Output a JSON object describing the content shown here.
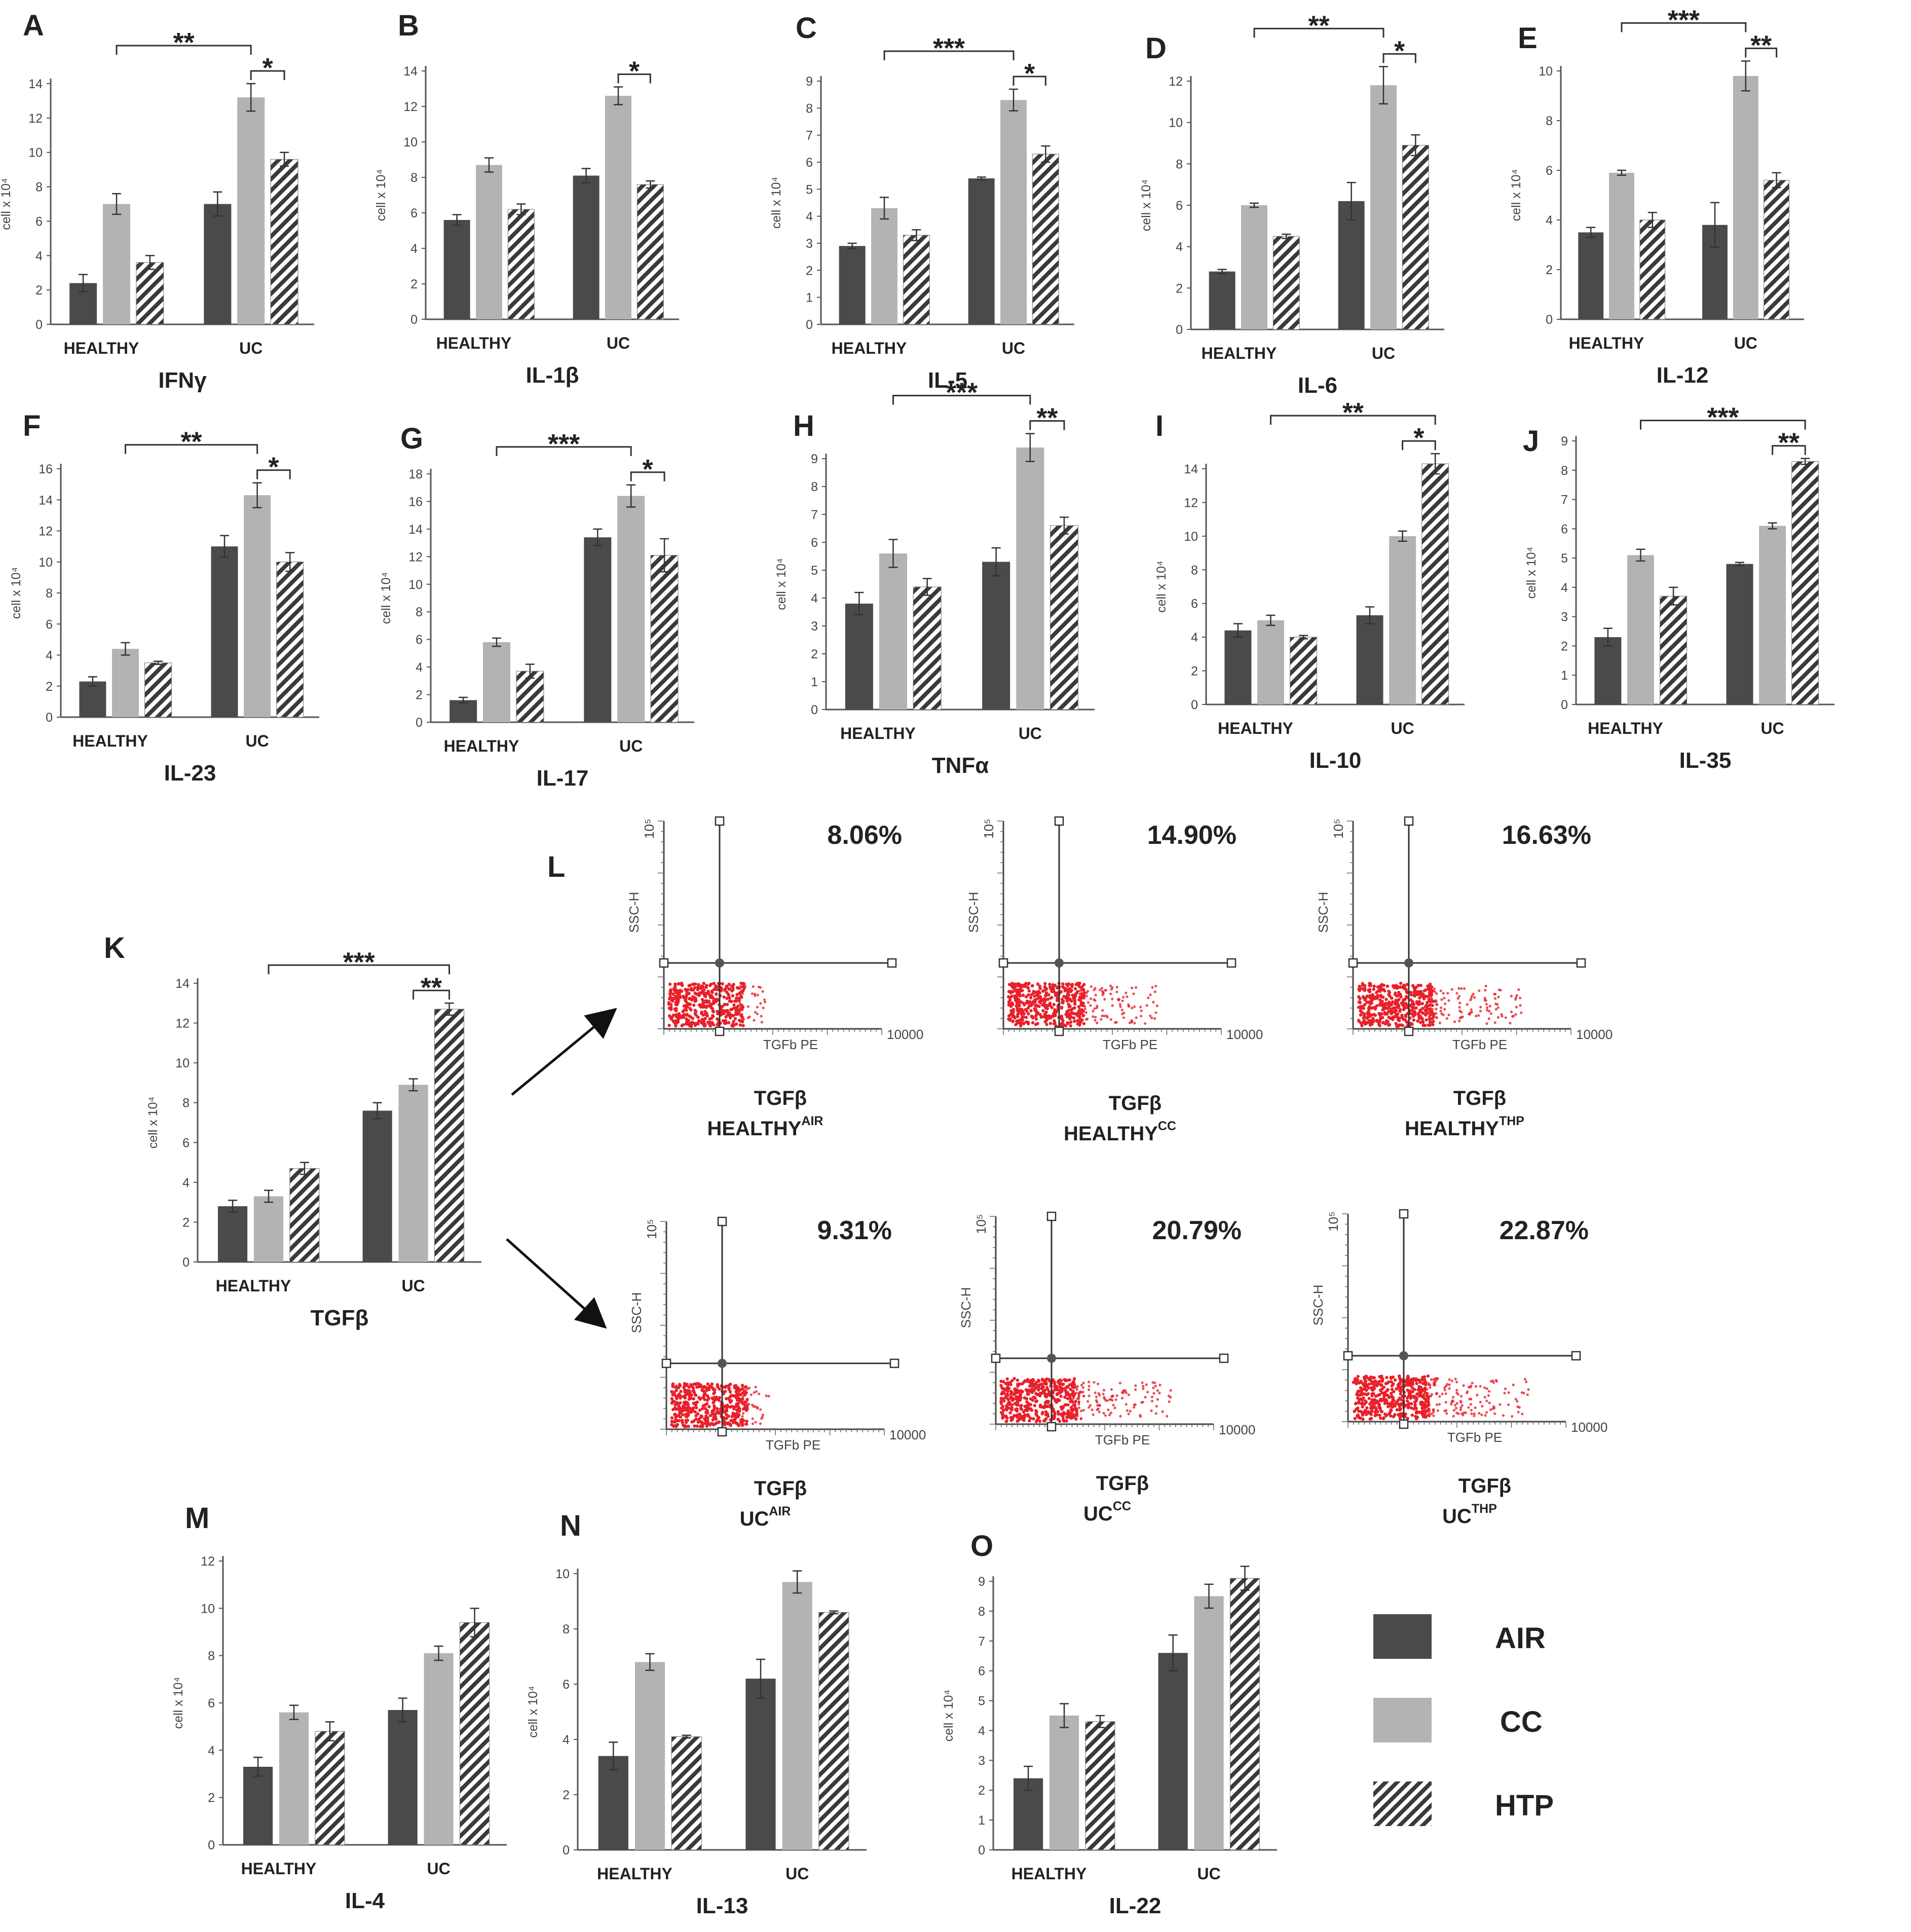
{
  "colors": {
    "air": "#4a4a4a",
    "cc": "#b3b3b3",
    "htp_stripe": "#3a3a3a",
    "htp_bg": "#ffffff",
    "dots": "#e8202a"
  },
  "legend": {
    "items": [
      {
        "key": "air",
        "label": "AIR"
      },
      {
        "key": "cc",
        "label": "CC"
      },
      {
        "key": "htp",
        "label": "HTP"
      }
    ]
  },
  "chart_data": [
    {
      "id": "A",
      "type": "bar",
      "title": "IFNγ",
      "ylabel": "cell x 10⁴",
      "ylim": [
        0,
        14
      ],
      "yticks": [
        0,
        2,
        4,
        6,
        8,
        10,
        12,
        14
      ],
      "categories": [
        "HEALTHY",
        "UC"
      ],
      "series": [
        {
          "name": "AIR",
          "values": [
            2.4,
            7.0
          ],
          "err": [
            0.5,
            0.7
          ]
        },
        {
          "name": "CC",
          "values": [
            7.0,
            13.2
          ],
          "err": [
            0.6,
            0.8
          ]
        },
        {
          "name": "HTP",
          "values": [
            3.6,
            9.6
          ],
          "err": [
            0.4,
            0.4
          ]
        }
      ],
      "sig": [
        {
          "from": [
            0,
            1
          ],
          "to": [
            1,
            1
          ],
          "label": "**",
          "level": 0
        },
        {
          "from": [
            1,
            1
          ],
          "to": [
            1,
            2
          ],
          "label": "*",
          "level": 1
        }
      ]
    },
    {
      "id": "B",
      "type": "bar",
      "title": "IL-1β",
      "ylabel": "cell x 10⁴",
      "ylim": [
        0,
        14
      ],
      "yticks": [
        0,
        2,
        4,
        6,
        8,
        10,
        12,
        14
      ],
      "categories": [
        "HEALTHY",
        "UC"
      ],
      "series": [
        {
          "name": "AIR",
          "values": [
            5.6,
            8.1
          ],
          "err": [
            0.3,
            0.4
          ]
        },
        {
          "name": "CC",
          "values": [
            8.7,
            12.6
          ],
          "err": [
            0.4,
            0.5
          ]
        },
        {
          "name": "HTP",
          "values": [
            6.2,
            7.6
          ],
          "err": [
            0.3,
            0.2
          ]
        }
      ],
      "sig": [
        {
          "from": [
            1,
            1
          ],
          "to": [
            1,
            2
          ],
          "label": "*",
          "level": 1
        }
      ]
    },
    {
      "id": "C",
      "type": "bar",
      "title": "IL-5",
      "ylabel": "cell x 10⁴",
      "ylim": [
        0,
        9
      ],
      "yticks": [
        0,
        1,
        2,
        3,
        4,
        5,
        6,
        7,
        8,
        9
      ],
      "categories": [
        "HEALTHY",
        "UC"
      ],
      "series": [
        {
          "name": "AIR",
          "values": [
            2.9,
            5.4
          ],
          "err": [
            0.1,
            0.05
          ]
        },
        {
          "name": "CC",
          "values": [
            4.3,
            8.3
          ],
          "err": [
            0.4,
            0.4
          ]
        },
        {
          "name": "HTP",
          "values": [
            3.3,
            6.3
          ],
          "err": [
            0.2,
            0.3
          ]
        }
      ],
      "sig": [
        {
          "from": [
            0,
            1
          ],
          "to": [
            1,
            1
          ],
          "label": "***",
          "level": 0
        },
        {
          "from": [
            1,
            1
          ],
          "to": [
            1,
            2
          ],
          "label": "*",
          "level": 1
        }
      ]
    },
    {
      "id": "D",
      "type": "bar",
      "title": "IL-6",
      "ylabel": "cell x 10⁴",
      "ylim": [
        0,
        12
      ],
      "yticks": [
        0,
        2,
        4,
        6,
        8,
        10,
        12
      ],
      "categories": [
        "HEALTHY",
        "UC"
      ],
      "series": [
        {
          "name": "AIR",
          "values": [
            2.8,
            6.2
          ],
          "err": [
            0.1,
            0.9
          ]
        },
        {
          "name": "CC",
          "values": [
            6.0,
            11.8
          ],
          "err": [
            0.1,
            0.9
          ]
        },
        {
          "name": "HTP",
          "values": [
            4.5,
            8.9
          ],
          "err": [
            0.1,
            0.5
          ]
        }
      ],
      "sig": [
        {
          "from": [
            0,
            1
          ],
          "to": [
            1,
            1
          ],
          "label": "**",
          "level": 0
        },
        {
          "from": [
            1,
            1
          ],
          "to": [
            1,
            2
          ],
          "label": "*",
          "level": 1
        }
      ]
    },
    {
      "id": "E",
      "type": "bar",
      "title": "IL-12",
      "ylabel": "cell x 10⁴",
      "ylim": [
        0,
        10
      ],
      "yticks": [
        0,
        2,
        4,
        6,
        8,
        10
      ],
      "categories": [
        "HEALTHY",
        "UC"
      ],
      "series": [
        {
          "name": "AIR",
          "values": [
            3.5,
            3.8
          ],
          "err": [
            0.2,
            0.9
          ]
        },
        {
          "name": "CC",
          "values": [
            5.9,
            9.8
          ],
          "err": [
            0.1,
            0.6
          ]
        },
        {
          "name": "HTP",
          "values": [
            4.0,
            5.6
          ],
          "err": [
            0.3,
            0.3
          ]
        }
      ],
      "sig": [
        {
          "from": [
            0,
            1
          ],
          "to": [
            1,
            1
          ],
          "label": "***",
          "level": 0
        },
        {
          "from": [
            1,
            1
          ],
          "to": [
            1,
            2
          ],
          "label": "**",
          "level": 1
        }
      ]
    },
    {
      "id": "F",
      "type": "bar",
      "title": "IL-23",
      "ylabel": "cell x 10⁴",
      "ylim": [
        0,
        16
      ],
      "yticks": [
        0,
        2,
        4,
        6,
        8,
        10,
        12,
        14,
        16
      ],
      "categories": [
        "HEALTHY",
        "UC"
      ],
      "series": [
        {
          "name": "AIR",
          "values": [
            2.3,
            11.0
          ],
          "err": [
            0.3,
            0.7
          ]
        },
        {
          "name": "CC",
          "values": [
            4.4,
            14.3
          ],
          "err": [
            0.4,
            0.8
          ]
        },
        {
          "name": "HTP",
          "values": [
            3.5,
            10.0
          ],
          "err": [
            0.1,
            0.6
          ]
        }
      ],
      "sig": [
        {
          "from": [
            0,
            1
          ],
          "to": [
            1,
            1
          ],
          "label": "**",
          "level": 0
        },
        {
          "from": [
            1,
            1
          ],
          "to": [
            1,
            2
          ],
          "label": "*",
          "level": 1
        }
      ]
    },
    {
      "id": "G",
      "type": "bar",
      "title": "IL-17",
      "ylabel": "cell x 10⁴",
      "ylim": [
        0,
        18
      ],
      "yticks": [
        0,
        2,
        4,
        6,
        8,
        10,
        12,
        14,
        16,
        18
      ],
      "categories": [
        "HEALTHY",
        "UC"
      ],
      "series": [
        {
          "name": "AIR",
          "values": [
            1.6,
            13.4
          ],
          "err": [
            0.2,
            0.6
          ]
        },
        {
          "name": "CC",
          "values": [
            5.8,
            16.4
          ],
          "err": [
            0.3,
            0.8
          ]
        },
        {
          "name": "HTP",
          "values": [
            3.7,
            12.1
          ],
          "err": [
            0.5,
            1.2
          ]
        }
      ],
      "sig": [
        {
          "from": [
            0,
            1
          ],
          "to": [
            1,
            1
          ],
          "label": "***",
          "level": 0
        },
        {
          "from": [
            1,
            1
          ],
          "to": [
            1,
            2
          ],
          "label": "*",
          "level": 1
        }
      ]
    },
    {
      "id": "H",
      "type": "bar",
      "title": "TNFα",
      "ylabel": "cell x 10⁴",
      "ylim": [
        0,
        9
      ],
      "yticks": [
        0,
        1,
        2,
        3,
        4,
        5,
        6,
        7,
        8,
        9
      ],
      "categories": [
        "HEALTHY",
        "UC"
      ],
      "series": [
        {
          "name": "AIR",
          "values": [
            3.8,
            5.3
          ],
          "err": [
            0.4,
            0.5
          ]
        },
        {
          "name": "CC",
          "values": [
            5.6,
            9.4
          ],
          "err": [
            0.5,
            0.5
          ]
        },
        {
          "name": "HTP",
          "values": [
            4.4,
            6.6
          ],
          "err": [
            0.3,
            0.3
          ]
        }
      ],
      "sig": [
        {
          "from": [
            0,
            1
          ],
          "to": [
            1,
            1
          ],
          "label": "***",
          "level": 0
        },
        {
          "from": [
            1,
            1
          ],
          "to": [
            1,
            2
          ],
          "label": "**",
          "level": 1
        }
      ]
    },
    {
      "id": "I",
      "type": "bar",
      "title": "IL-10",
      "ylabel": "cell x 10⁴",
      "ylim": [
        0,
        14
      ],
      "yticks": [
        0,
        2,
        4,
        6,
        8,
        10,
        12,
        14
      ],
      "categories": [
        "HEALTHY",
        "UC"
      ],
      "series": [
        {
          "name": "AIR",
          "values": [
            4.4,
            5.3
          ],
          "err": [
            0.4,
            0.5
          ]
        },
        {
          "name": "CC",
          "values": [
            5.0,
            10.0
          ],
          "err": [
            0.3,
            0.3
          ]
        },
        {
          "name": "HTP",
          "values": [
            4.0,
            14.3
          ],
          "err": [
            0.1,
            0.6
          ]
        }
      ],
      "sig": [
        {
          "from": [
            0,
            1
          ],
          "to": [
            1,
            2
          ],
          "label": "**",
          "level": 0
        },
        {
          "from": [
            1,
            1
          ],
          "to": [
            1,
            2
          ],
          "label": "*",
          "level": 1
        }
      ]
    },
    {
      "id": "J",
      "type": "bar",
      "title": "IL-35",
      "ylabel": "cell x 10⁴",
      "ylim": [
        0,
        9
      ],
      "yticks": [
        0,
        1,
        2,
        3,
        4,
        5,
        6,
        7,
        8,
        9
      ],
      "categories": [
        "HEALTHY",
        "UC"
      ],
      "series": [
        {
          "name": "AIR",
          "values": [
            2.3,
            4.8
          ],
          "err": [
            0.3,
            0.05
          ]
        },
        {
          "name": "CC",
          "values": [
            5.1,
            6.1
          ],
          "err": [
            0.2,
            0.1
          ]
        },
        {
          "name": "HTP",
          "values": [
            3.7,
            8.3
          ],
          "err": [
            0.3,
            0.1
          ]
        }
      ],
      "sig": [
        {
          "from": [
            0,
            1
          ],
          "to": [
            1,
            2
          ],
          "label": "***",
          "level": 0
        },
        {
          "from": [
            1,
            1
          ],
          "to": [
            1,
            2
          ],
          "label": "**",
          "level": 1
        }
      ]
    },
    {
      "id": "K",
      "type": "bar",
      "title": "TGFβ",
      "ylabel": "cell x 10⁴",
      "ylim": [
        0,
        14
      ],
      "yticks": [
        0,
        2,
        4,
        6,
        8,
        10,
        12,
        14
      ],
      "categories": [
        "HEALTHY",
        "UC"
      ],
      "series": [
        {
          "name": "AIR",
          "values": [
            2.8,
            7.6
          ],
          "err": [
            0.3,
            0.4
          ]
        },
        {
          "name": "CC",
          "values": [
            3.3,
            8.9
          ],
          "err": [
            0.3,
            0.3
          ]
        },
        {
          "name": "HTP",
          "values": [
            4.7,
            12.7
          ],
          "err": [
            0.3,
            0.3
          ]
        }
      ],
      "sig": [
        {
          "from": [
            0,
            1
          ],
          "to": [
            1,
            2
          ],
          "label": "***",
          "level": 0
        },
        {
          "from": [
            1,
            1
          ],
          "to": [
            1,
            2
          ],
          "label": "**",
          "level": 1
        }
      ]
    },
    {
      "id": "M",
      "type": "bar",
      "title": "IL-4",
      "ylabel": "cell x 10⁴",
      "ylim": [
        0,
        12
      ],
      "yticks": [
        0,
        2,
        4,
        6,
        8,
        10,
        12
      ],
      "categories": [
        "HEALTHY",
        "UC"
      ],
      "series": [
        {
          "name": "AIR",
          "values": [
            3.3,
            5.7
          ],
          "err": [
            0.4,
            0.5
          ]
        },
        {
          "name": "CC",
          "values": [
            5.6,
            8.1
          ],
          "err": [
            0.3,
            0.3
          ]
        },
        {
          "name": "HTP",
          "values": [
            4.8,
            9.4
          ],
          "err": [
            0.4,
            0.6
          ]
        }
      ],
      "sig": []
    },
    {
      "id": "N",
      "type": "bar",
      "title": "IL-13",
      "ylabel": "cell x 10⁴",
      "ylim": [
        0,
        10
      ],
      "yticks": [
        0,
        2,
        4,
        6,
        8,
        10
      ],
      "categories": [
        "HEALTHY",
        "UC"
      ],
      "series": [
        {
          "name": "AIR",
          "values": [
            3.4,
            6.2
          ],
          "err": [
            0.5,
            0.7
          ]
        },
        {
          "name": "CC",
          "values": [
            6.8,
            9.7
          ],
          "err": [
            0.3,
            0.4
          ]
        },
        {
          "name": "HTP",
          "values": [
            4.1,
            8.6
          ],
          "err": [
            0.05,
            0.05
          ]
        }
      ],
      "sig": []
    },
    {
      "id": "O",
      "type": "bar",
      "title": "IL-22",
      "ylabel": "cell x 10⁴",
      "ylim": [
        0,
        9
      ],
      "yticks": [
        0,
        1,
        2,
        3,
        4,
        5,
        6,
        7,
        8,
        9
      ],
      "categories": [
        "HEALTHY",
        "UC"
      ],
      "series": [
        {
          "name": "AIR",
          "values": [
            2.4,
            6.6
          ],
          "err": [
            0.4,
            0.6
          ]
        },
        {
          "name": "CC",
          "values": [
            4.5,
            8.5
          ],
          "err": [
            0.4,
            0.4
          ]
        },
        {
          "name": "HTP",
          "values": [
            4.3,
            9.1
          ],
          "err": [
            0.2,
            0.4
          ]
        }
      ],
      "sig": []
    }
  ],
  "flow": {
    "label": "L",
    "panels": [
      {
        "pct": "8.06%",
        "title": "TGFβ",
        "group": "HEALTHY",
        "sup": "AIR",
        "spread": 0.18
      },
      {
        "pct": "14.90%",
        "title": "TGFβ",
        "group": "HEALTHY",
        "sup": "CC",
        "spread": 0.55
      },
      {
        "pct": "16.63%",
        "title": "TGFβ",
        "group": "HEALTHY",
        "sup": "THP",
        "spread": 0.65
      },
      {
        "pct": "9.31%",
        "title": "TGFβ",
        "group": "UC",
        "sup": "AIR",
        "spread": 0.2
      },
      {
        "pct": "20.79%",
        "title": "TGFβ",
        "group": "UC",
        "sup": "CC",
        "spread": 0.7
      },
      {
        "pct": "22.87%",
        "title": "TGFβ",
        "group": "UC",
        "sup": "THP",
        "spread": 0.75
      }
    ],
    "ylabel": "SSC-H",
    "xlabel": "TGFb PE",
    "xmax_label": "10000",
    "ymax_label": "10⁵"
  }
}
